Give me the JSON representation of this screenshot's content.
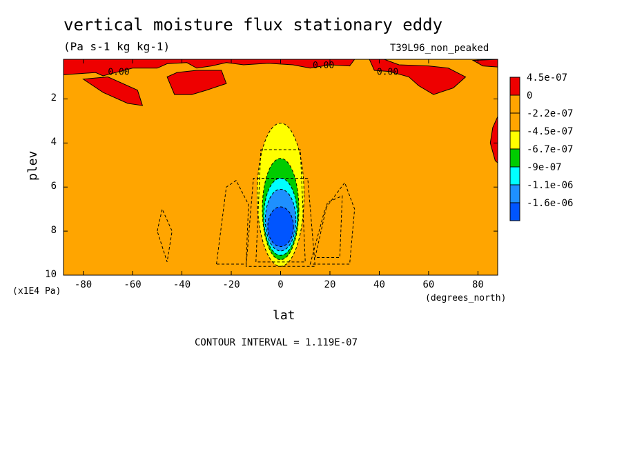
{
  "header": {
    "title": "vertical moisture flux stationary eddy",
    "units": "(Pa s-1 kg kg-1)",
    "experiment": "T39L96_non_peaked"
  },
  "footer": {
    "contour_interval": "CONTOUR INTERVAL = 1.119E-07"
  },
  "chart_data": {
    "type": "heatmap",
    "title": "vertical moisture flux stationary eddy",
    "xlabel": "lat",
    "ylabel": "plev",
    "x_unit_label": "(degrees_north)",
    "y_scale_label": "(x1E4 Pa)",
    "xlim": [
      -88,
      88
    ],
    "ylim": [
      10,
      0.2
    ],
    "y_inverted": true,
    "x_ticks": [
      -80,
      -60,
      -40,
      -20,
      0,
      20,
      40,
      60,
      80
    ],
    "y_ticks": [
      2,
      4,
      6,
      8,
      10
    ],
    "contour_labels": [
      {
        "text": "0.00",
        "lat": -70,
        "plev": 0.9
      },
      {
        "text": "0.00",
        "lat": 13,
        "plev": 0.6
      },
      {
        "text": "0.00",
        "lat": 39,
        "plev": 0.9
      }
    ],
    "colorbar": {
      "levels": [
        "4.5e-07",
        "0",
        "-2.2e-07",
        "-4.5e-07",
        "-6.7e-07",
        "-9e-07",
        "-1.1e-06",
        "-1.6e-06"
      ],
      "colors": [
        "#ee0000",
        "#ffa500",
        "#ffa500",
        "#ffff00",
        "#00cc00",
        "#00ffff",
        "#1e90ff",
        "#0055ff"
      ]
    },
    "features": {
      "background_level": "-2.2e-07",
      "minimum_center": {
        "lat": 0,
        "plev": 7.5,
        "value": "-1.6e-06"
      },
      "positive_regions": "near top of atmosphere (plev < 1) and northern edge at lat ~88"
    }
  }
}
